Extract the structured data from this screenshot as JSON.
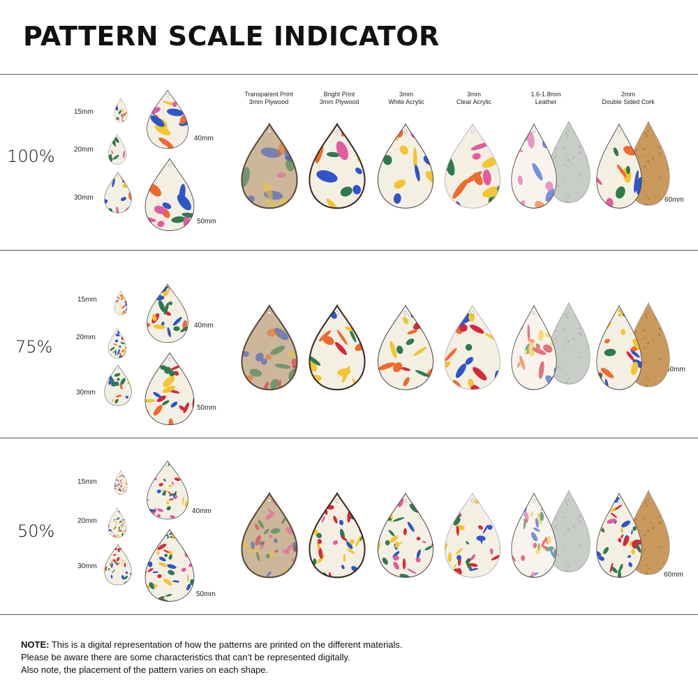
{
  "title": "PATTERN SCALE INDICATOR",
  "materials": [
    {
      "label": "Transparent Print\n3mm Plywood",
      "type": "plywood-transparent"
    },
    {
      "label": "Bright Print\n3mm Plywood",
      "type": "plywood-bright"
    },
    {
      "label": "3mm\nWhite Acrylic",
      "type": "acrylic-white"
    },
    {
      "label": "3mm\nClear Acrylic",
      "type": "acrylic-clear"
    },
    {
      "label": "1.6-1.8mm\nLeather",
      "type": "leather"
    },
    {
      "label": "2mm\nDouble Sided Cork",
      "type": "cork"
    }
  ],
  "sections": [
    {
      "scale": "100%",
      "sizes": [
        "15mm",
        "20mm",
        "30mm",
        "40mm",
        "50mm"
      ],
      "large_size": "60mm"
    },
    {
      "scale": "75%",
      "sizes": [
        "15mm",
        "20mm",
        "30mm",
        "40mm",
        "50mm"
      ],
      "large_size": "60mm"
    },
    {
      "scale": "50%",
      "sizes": [
        "15mm",
        "20mm",
        "30mm",
        "40mm",
        "50mm"
      ],
      "large_size": "60mm"
    }
  ],
  "note": {
    "lead": "NOTE:",
    "line1": " This is a digital representation of how the patterns are printed on the different materials.",
    "line2": "Please be aware there are some characteristics that can’t be represented digitally.",
    "line3": "Also note, the placement of the pattern varies on each shape."
  },
  "colors": {
    "blue": "#2f55c8",
    "green": "#2e7a4f",
    "yellow": "#f2c531",
    "orange": "#ef6a2c",
    "red": "#d8283a",
    "pink": "#e55a9e",
    "cream": "#f4efe3",
    "cork": "#c99a5c",
    "leather_grey": "#c9cdc8",
    "rule": "#555555"
  }
}
